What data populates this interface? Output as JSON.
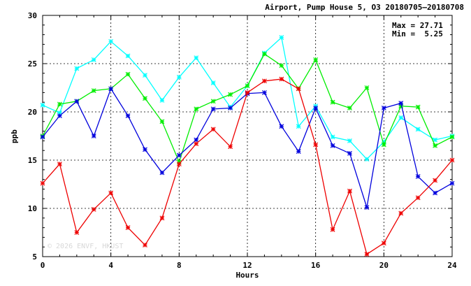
{
  "chart_data": {
    "type": "line",
    "title": "Airport, Pump House 5, O3 20180705—20180708",
    "xlabel": "Hours",
    "ylabel": "ppb",
    "xlim": [
      0,
      24
    ],
    "ylim": [
      5,
      30
    ],
    "x_ticks": [
      "0",
      "4",
      "8",
      "12",
      "16",
      "20",
      "24"
    ],
    "y_ticks": [
      "5",
      "10",
      "15",
      "20",
      "25",
      "30"
    ],
    "x_tick_values": [
      0,
      4,
      8,
      12,
      16,
      20,
      24
    ],
    "y_tick_values": [
      5,
      10,
      15,
      20,
      25,
      30
    ],
    "grid": true,
    "stats": {
      "max_line": "Max = 27.71",
      "min_line": "Min =  5.25"
    },
    "watermark": "© 2026  ENVF, HKUST",
    "x": [
      0,
      1,
      2,
      3,
      4,
      5,
      6,
      7,
      8,
      9,
      10,
      11,
      12,
      13,
      14,
      15,
      16,
      17,
      18,
      19,
      20,
      21,
      22,
      23,
      24
    ],
    "series": [
      {
        "color": "#00ffff",
        "values": [
          20.7,
          19.9,
          24.5,
          25.4,
          27.3,
          25.8,
          23.8,
          21.2,
          23.6,
          25.6,
          23.0,
          20.5,
          22.7,
          26.1,
          27.71,
          18.5,
          20.6,
          17.4,
          17.0,
          15.1,
          16.9,
          19.4,
          18.2,
          17.1,
          17.5
        ]
      },
      {
        "color": "#00ee00",
        "values": [
          17.5,
          20.8,
          21.1,
          22.2,
          22.4,
          23.9,
          21.4,
          19.0,
          14.8,
          20.3,
          21.1,
          21.8,
          22.7,
          26.0,
          24.8,
          22.4,
          25.4,
          21.0,
          20.4,
          22.5,
          16.6,
          20.6,
          20.5,
          16.5,
          17.4
        ]
      },
      {
        "color": "#0000dd",
        "values": [
          17.4,
          19.6,
          21.1,
          17.5,
          22.4,
          19.6,
          16.1,
          13.7,
          15.5,
          17.1,
          20.3,
          20.4,
          21.9,
          22.0,
          18.5,
          15.9,
          20.4,
          16.5,
          15.7,
          10.1,
          20.4,
          20.9,
          13.3,
          11.6,
          12.6
        ]
      },
      {
        "color": "#ee0000",
        "values": [
          12.6,
          14.6,
          7.5,
          9.9,
          11.6,
          8.0,
          6.2,
          9.0,
          14.6,
          16.7,
          18.2,
          16.4,
          22.0,
          23.2,
          23.4,
          22.4,
          16.6,
          7.8,
          11.8,
          5.25,
          6.4,
          9.5,
          11.1,
          12.9,
          15.0
        ]
      }
    ]
  }
}
